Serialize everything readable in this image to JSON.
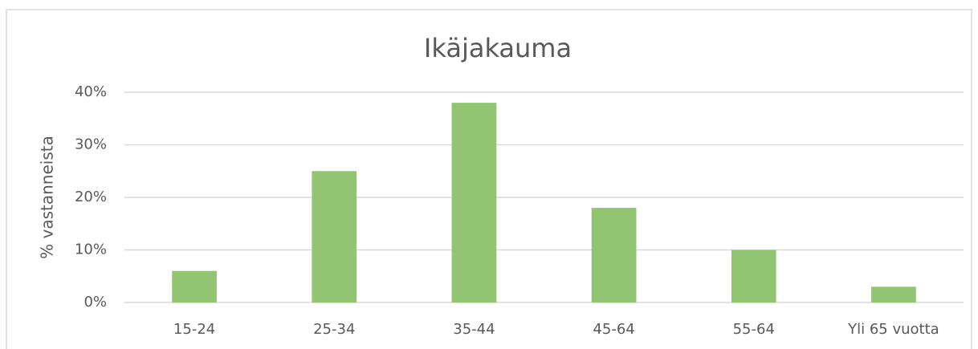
{
  "chart_data": {
    "type": "bar",
    "title": "Ikäjakauma",
    "y_label": "% vastanneista",
    "categories": [
      "15-24",
      "25-34",
      "35-44",
      "45-64",
      "55-64",
      "Yli 65 vuotta"
    ],
    "values": [
      6,
      25,
      38,
      18,
      10,
      3
    ],
    "color": "#92c572",
    "ylim": [
      0,
      40
    ],
    "yticks": [
      {
        "value": 0,
        "label": "0%"
      },
      {
        "value": 10,
        "label": "10%"
      },
      {
        "value": 20,
        "label": "20%"
      },
      {
        "value": 30,
        "label": "30%"
      },
      {
        "value": 40,
        "label": "40%"
      }
    ],
    "grid": true
  }
}
